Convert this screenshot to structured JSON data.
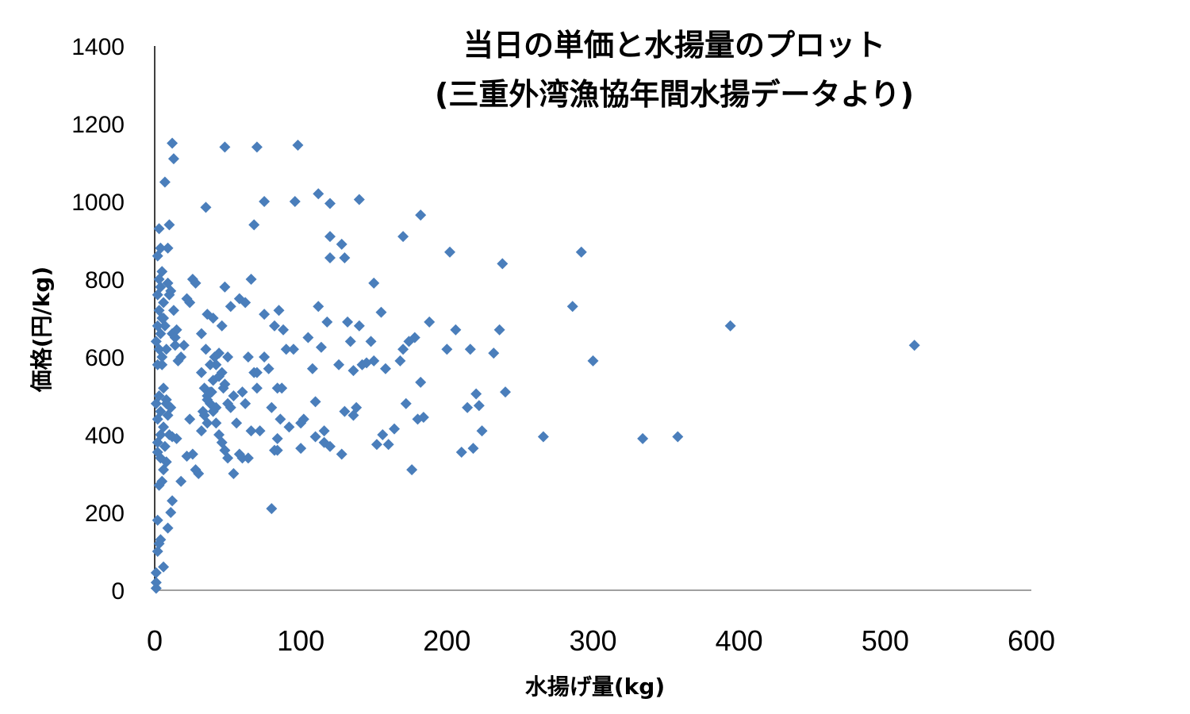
{
  "chart_data": {
    "type": "scatter",
    "title_lines": [
      "当日の単価と水揚量のプロット",
      "(三重外湾漁協年間水揚データより)"
    ],
    "xlabel": "水揚げ量(kg)",
    "ylabel": "価格(円/kg)",
    "xlim": [
      0,
      600
    ],
    "ylim": [
      0,
      1400
    ],
    "xticks": [
      "0",
      "100",
      "200",
      "300",
      "400",
      "500",
      "600"
    ],
    "yticks": [
      "0",
      "200",
      "400",
      "600",
      "800",
      "1000",
      "1200",
      "1400"
    ],
    "grid": false,
    "legend": "none",
    "marker": "diamond",
    "marker_color": "#4A7EBB",
    "points": [
      [
        1,
        5
      ],
      [
        1,
        20
      ],
      [
        1,
        45
      ],
      [
        2,
        100
      ],
      [
        2,
        180
      ],
      [
        3,
        120
      ],
      [
        4,
        130
      ],
      [
        6,
        60
      ],
      [
        9,
        160
      ],
      [
        11,
        200
      ],
      [
        12,
        230
      ],
      [
        3,
        270
      ],
      [
        5,
        280
      ],
      [
        6,
        310
      ],
      [
        8,
        330
      ],
      [
        4,
        340
      ],
      [
        2,
        355
      ],
      [
        7,
        370
      ],
      [
        2,
        380
      ],
      [
        4,
        400
      ],
      [
        6,
        420
      ],
      [
        2,
        440
      ],
      [
        4,
        460
      ],
      [
        1,
        480
      ],
      [
        3,
        500
      ],
      [
        8,
        490
      ],
      [
        6,
        520
      ],
      [
        2,
        580
      ],
      [
        5,
        600
      ],
      [
        3,
        620
      ],
      [
        1,
        640
      ],
      [
        4,
        660
      ],
      [
        2,
        680
      ],
      [
        5,
        700
      ],
      [
        3,
        720
      ],
      [
        6,
        740
      ],
      [
        2,
        760
      ],
      [
        4,
        780
      ],
      [
        3,
        800
      ],
      [
        5,
        820
      ],
      [
        2,
        860
      ],
      [
        4,
        880
      ],
      [
        3,
        930
      ],
      [
        9,
        880
      ],
      [
        10,
        940
      ],
      [
        7,
        1050
      ],
      [
        12,
        1150
      ],
      [
        13,
        1110
      ],
      [
        11,
        470
      ],
      [
        9,
        450
      ],
      [
        8,
        480
      ],
      [
        10,
        400
      ],
      [
        12,
        395
      ],
      [
        15,
        390
      ],
      [
        18,
        280
      ],
      [
        22,
        345
      ],
      [
        24,
        440
      ],
      [
        26,
        350
      ],
      [
        28,
        310
      ],
      [
        30,
        300
      ],
      [
        14,
        630
      ],
      [
        12,
        660
      ],
      [
        16,
        590
      ],
      [
        18,
        600
      ],
      [
        20,
        630
      ],
      [
        22,
        750
      ],
      [
        24,
        740
      ],
      [
        26,
        800
      ],
      [
        28,
        790
      ],
      [
        13,
        720
      ],
      [
        10,
        760
      ],
      [
        9,
        790
      ],
      [
        11,
        770
      ],
      [
        8,
        620
      ],
      [
        7,
        680
      ],
      [
        6,
        700
      ],
      [
        5,
        580
      ],
      [
        15,
        670
      ],
      [
        14,
        650
      ],
      [
        32,
        560
      ],
      [
        34,
        520
      ],
      [
        36,
        500
      ],
      [
        38,
        480
      ],
      [
        40,
        460
      ],
      [
        42,
        430
      ],
      [
        44,
        400
      ],
      [
        46,
        380
      ],
      [
        48,
        360
      ],
      [
        50,
        340
      ],
      [
        32,
        410
      ],
      [
        34,
        450
      ],
      [
        36,
        490
      ],
      [
        38,
        510
      ],
      [
        40,
        540
      ],
      [
        42,
        580
      ],
      [
        44,
        610
      ],
      [
        46,
        560
      ],
      [
        48,
        530
      ],
      [
        50,
        600
      ],
      [
        35,
        620
      ],
      [
        38,
        580
      ],
      [
        41,
        600
      ],
      [
        44,
        550
      ],
      [
        47,
        520
      ],
      [
        50,
        480
      ],
      [
        33,
        460
      ],
      [
        36,
        430
      ],
      [
        39,
        510
      ],
      [
        42,
        470
      ],
      [
        52,
        470
      ],
      [
        54,
        500
      ],
      [
        56,
        430
      ],
      [
        58,
        350
      ],
      [
        60,
        510
      ],
      [
        62,
        480
      ],
      [
        64,
        600
      ],
      [
        66,
        410
      ],
      [
        68,
        560
      ],
      [
        70,
        520
      ],
      [
        54,
        300
      ],
      [
        60,
        340
      ],
      [
        64,
        340
      ],
      [
        72,
        410
      ],
      [
        75,
        600
      ],
      [
        78,
        570
      ],
      [
        80,
        470
      ],
      [
        82,
        360
      ],
      [
        84,
        360
      ],
      [
        86,
        440
      ],
      [
        32,
        660
      ],
      [
        36,
        710
      ],
      [
        40,
        700
      ],
      [
        46,
        680
      ],
      [
        48,
        780
      ],
      [
        52,
        730
      ],
      [
        58,
        750
      ],
      [
        62,
        740
      ],
      [
        66,
        800
      ],
      [
        70,
        560
      ],
      [
        75,
        710
      ],
      [
        82,
        680
      ],
      [
        85,
        720
      ],
      [
        88,
        670
      ],
      [
        90,
        620
      ],
      [
        84,
        520
      ],
      [
        87,
        520
      ],
      [
        80,
        210
      ],
      [
        84,
        390
      ],
      [
        92,
        420
      ],
      [
        35,
        985
      ],
      [
        48,
        1140
      ],
      [
        70,
        1140
      ],
      [
        75,
        1000
      ],
      [
        68,
        940
      ],
      [
        96,
        1000
      ],
      [
        98,
        1145
      ],
      [
        112,
        1020
      ],
      [
        120,
        995
      ],
      [
        140,
        1005
      ],
      [
        120,
        910
      ],
      [
        128,
        890
      ],
      [
        120,
        855
      ],
      [
        130,
        855
      ],
      [
        150,
        790
      ],
      [
        155,
        715
      ],
      [
        170,
        910
      ],
      [
        182,
        965
      ],
      [
        95,
        620
      ],
      [
        100,
        430
      ],
      [
        102,
        440
      ],
      [
        105,
        650
      ],
      [
        108,
        570
      ],
      [
        110,
        485
      ],
      [
        112,
        730
      ],
      [
        114,
        625
      ],
      [
        116,
        380
      ],
      [
        118,
        690
      ],
      [
        100,
        365
      ],
      [
        110,
        395
      ],
      [
        116,
        410
      ],
      [
        120,
        370
      ],
      [
        126,
        580
      ],
      [
        128,
        350
      ],
      [
        130,
        460
      ],
      [
        132,
        690
      ],
      [
        134,
        640
      ],
      [
        136,
        565
      ],
      [
        136,
        450
      ],
      [
        138,
        470
      ],
      [
        140,
        680
      ],
      [
        142,
        580
      ],
      [
        145,
        585
      ],
      [
        148,
        640
      ],
      [
        150,
        590
      ],
      [
        152,
        375
      ],
      [
        156,
        400
      ],
      [
        158,
        570
      ],
      [
        160,
        375
      ],
      [
        164,
        415
      ],
      [
        168,
        590
      ],
      [
        170,
        620
      ],
      [
        172,
        480
      ],
      [
        174,
        640
      ],
      [
        176,
        310
      ],
      [
        178,
        650
      ],
      [
        180,
        440
      ],
      [
        182,
        535
      ],
      [
        184,
        445
      ],
      [
        188,
        690
      ],
      [
        200,
        620
      ],
      [
        202,
        870
      ],
      [
        206,
        670
      ],
      [
        210,
        355
      ],
      [
        214,
        470
      ],
      [
        216,
        620
      ],
      [
        220,
        505
      ],
      [
        222,
        475
      ],
      [
        218,
        365
      ],
      [
        224,
        410
      ],
      [
        232,
        610
      ],
      [
        236,
        670
      ],
      [
        238,
        840
      ],
      [
        240,
        510
      ],
      [
        266,
        395
      ],
      [
        286,
        730
      ],
      [
        292,
        870
      ],
      [
        300,
        590
      ],
      [
        334,
        390
      ],
      [
        358,
        395
      ],
      [
        394,
        680
      ],
      [
        520,
        630
      ]
    ]
  }
}
